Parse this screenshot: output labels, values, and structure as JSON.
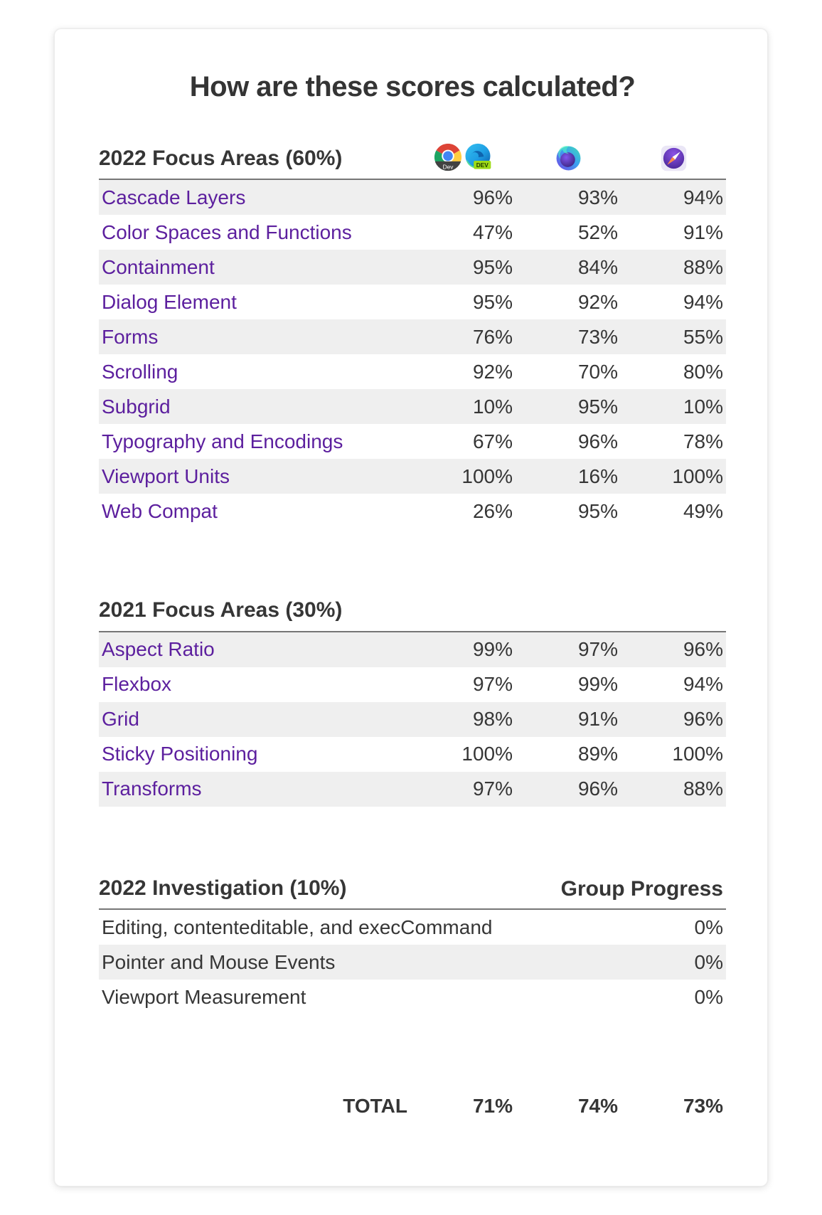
{
  "title": "How are these scores calculated?",
  "colors": {
    "link": "#5c1f9e",
    "text": "#363636",
    "stripe": "#efefef",
    "rule": "#767676"
  },
  "browsers": [
    {
      "id": "chrome-edge-dev",
      "label": "Chrome Dev and Edge Dev",
      "chrome_badge": "Dev",
      "edge_badge": "DEV"
    },
    {
      "id": "firefox-nightly",
      "label": "Firefox Nightly"
    },
    {
      "id": "safari-technology-preview",
      "label": "Safari Technology Preview"
    }
  ],
  "sections": [
    {
      "heading": "2022 Focus Areas (60%)",
      "rows": [
        {
          "label": "Cascade Layers",
          "scores": [
            "96%",
            "93%",
            "94%"
          ]
        },
        {
          "label": "Color Spaces and Functions",
          "scores": [
            "47%",
            "52%",
            "91%"
          ]
        },
        {
          "label": "Containment",
          "scores": [
            "95%",
            "84%",
            "88%"
          ]
        },
        {
          "label": "Dialog Element",
          "scores": [
            "95%",
            "92%",
            "94%"
          ]
        },
        {
          "label": "Forms",
          "scores": [
            "76%",
            "73%",
            "55%"
          ]
        },
        {
          "label": "Scrolling",
          "scores": [
            "92%",
            "70%",
            "80%"
          ]
        },
        {
          "label": "Subgrid",
          "scores": [
            "10%",
            "95%",
            "10%"
          ]
        },
        {
          "label": "Typography and Encodings",
          "scores": [
            "67%",
            "96%",
            "78%"
          ]
        },
        {
          "label": "Viewport Units",
          "scores": [
            "100%",
            "16%",
            "100%"
          ]
        },
        {
          "label": "Web Compat",
          "scores": [
            "26%",
            "95%",
            "49%"
          ]
        }
      ]
    },
    {
      "heading": "2021 Focus Areas (30%)",
      "rows": [
        {
          "label": "Aspect Ratio",
          "scores": [
            "99%",
            "97%",
            "96%"
          ]
        },
        {
          "label": "Flexbox",
          "scores": [
            "97%",
            "99%",
            "94%"
          ]
        },
        {
          "label": "Grid",
          "scores": [
            "98%",
            "91%",
            "96%"
          ]
        },
        {
          "label": "Sticky Positioning",
          "scores": [
            "100%",
            "89%",
            "100%"
          ]
        },
        {
          "label": "Transforms",
          "scores": [
            "97%",
            "96%",
            "88%"
          ]
        }
      ]
    }
  ],
  "investigation": {
    "heading": "2022 Investigation (10%)",
    "column_header": "Group Progress",
    "rows": [
      {
        "label": "Editing, contenteditable, and execCommand",
        "value": "0%"
      },
      {
        "label": "Pointer and Mouse Events",
        "value": "0%"
      },
      {
        "label": "Viewport Measurement",
        "value": "0%"
      }
    ]
  },
  "total": {
    "label": "TOTAL",
    "scores": [
      "71%",
      "74%",
      "73%"
    ]
  }
}
